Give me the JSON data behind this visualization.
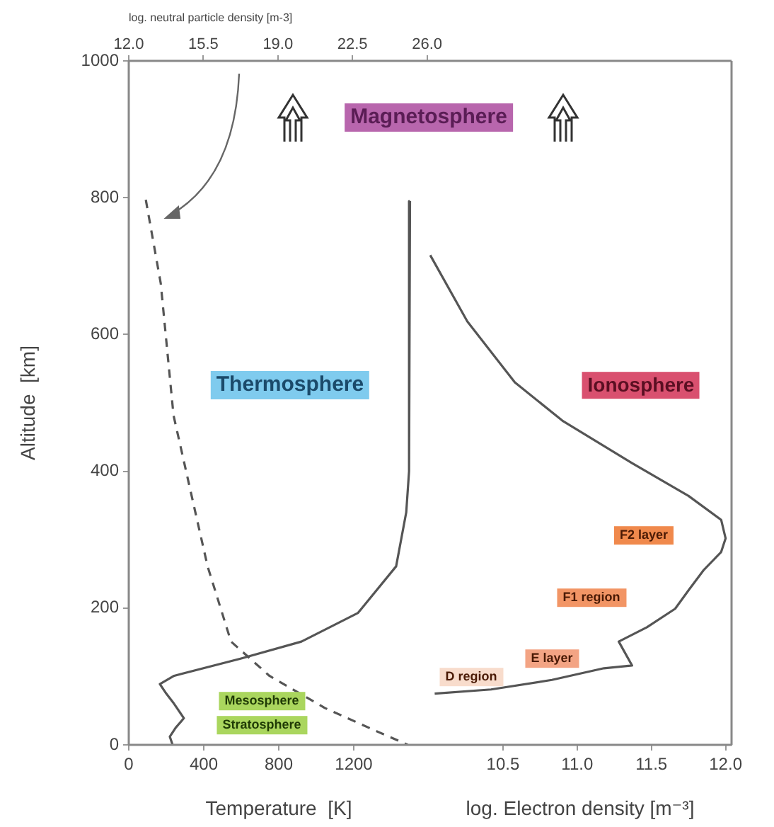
{
  "chart_data": [
    {
      "type": "line",
      "ylabel": "Altitude  [km]",
      "xlabel": "Temperature  [K]",
      "x2label": "log. neutral particle density [m-3]",
      "ylim": [
        0,
        1000
      ],
      "yticks": [
        0,
        200,
        400,
        600,
        800,
        1000
      ],
      "xlim": [
        0,
        1600
      ],
      "xticks": [
        0,
        400,
        800,
        1200
      ],
      "x2lim": [
        12,
        26.08
      ],
      "x2ticks": [
        {
          "value": 12,
          "label": "12.0"
        },
        {
          "value": 15.5,
          "label": "15.5"
        },
        {
          "value": 19,
          "label": "19.0"
        },
        {
          "value": 22.5,
          "label": "22.5"
        },
        {
          "value": 26,
          "label": "26.0"
        }
      ],
      "grid": false,
      "legend": false,
      "series": [
        {
          "color": "#555555",
          "x": [
            1500,
            1495,
            1480,
            1426,
            1223,
            921,
            596,
            242,
            166,
            200,
            242,
            294,
            250,
            219,
            234
          ],
          "values": [
            795,
            400,
            340,
            261,
            193,
            151,
            126,
            101,
            89,
            75,
            60,
            39,
            25,
            12,
            0
          ]
        },
        {
          "color": "#555555",
          "axis": "x2",
          "line_style": "dashed",
          "x": [
            12.8,
            13.5,
            14.1,
            14.8,
            15.7,
            16.8,
            18.6,
            21.2,
            23.7,
            25.1
          ],
          "values": [
            797,
            675,
            482,
            385,
            261,
            151,
            101,
            54,
            19,
            0
          ]
        }
      ],
      "annotations": [
        "Magnetosphere",
        "Thermosphere",
        "Mesosphere",
        "Stratosphere"
      ]
    },
    {
      "type": "line",
      "xlabel": "log. Electron density [m⁻³]",
      "tick_labels": "x",
      "ylim": [
        0,
        1000
      ],
      "xlim": [
        10.0,
        12.04
      ],
      "xticks": [
        {
          "value": 10.5,
          "label": "10.5"
        },
        {
          "value": 11,
          "label": "11.0"
        },
        {
          "value": 11.5,
          "label": "11.5"
        },
        {
          "value": 12,
          "label": "12.0"
        }
      ],
      "grid": false,
      "legend": false,
      "series": [
        {
          "color": "#555555",
          "x": [
            10.01,
            10.26,
            10.58,
            10.9,
            11.37,
            11.75,
            11.97,
            12.0,
            11.97,
            11.85,
            11.75,
            11.66,
            11.47,
            11.28,
            11.37,
            11.18,
            10.83,
            10.42,
            10.04
          ],
          "values": [
            716,
            619,
            530,
            474,
            412,
            364,
            329,
            302,
            282,
            255,
            226,
            199,
            172,
            151,
            116,
            112,
            95,
            81,
            75
          ]
        }
      ],
      "annotations": [
        "Ionosphere",
        "F2 layer",
        "F1 region",
        "E layer",
        "D region"
      ]
    }
  ]
}
